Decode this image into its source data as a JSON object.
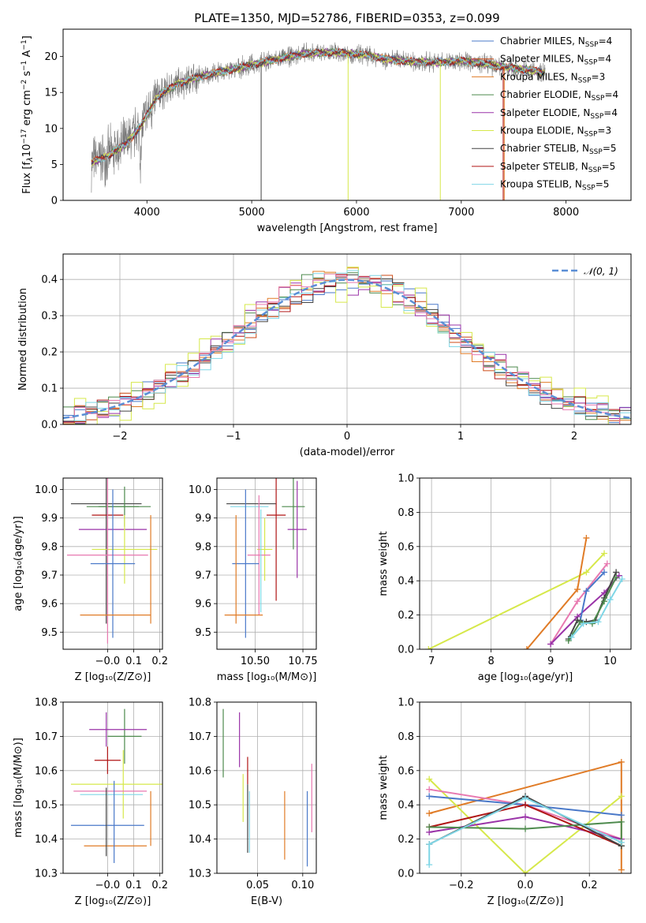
{
  "figure_title": "PLATE=1350, MJD=52786, FIBERID=0353, z=0.099",
  "colors": {
    "chabrier_miles": "#4a79c9",
    "salpeter_miles": "#cc4a15",
    "kroupa_miles": "#e07b26",
    "chabrier_elodie": "#4d8a4d",
    "salpeter_elodie": "#9a33a8",
    "kroupa_elodie": "#d6e84a",
    "chabrier_stelib": "#444444",
    "salpeter_stelib": "#b01515",
    "kroupa_stelib": "#7fd6e6",
    "pink": "#e879b0",
    "data": "#7a7a7a",
    "normal_curve": "#5b8fd6"
  },
  "chart_data": [
    {
      "id": "spectrum",
      "type": "line",
      "title": "PLATE=1350, MJD=52786, FIBERID=0353, z=0.099",
      "xlabel": "wavelength [Angstrom, rest frame]",
      "ylabel_parts": [
        "Flux [f",
        "λ",
        "10",
        "−17",
        " erg cm",
        "−2",
        " s",
        "−1",
        " A",
        "−1",
        "]"
      ],
      "xlim": [
        3200,
        8620
      ],
      "ylim": [
        0,
        23.8
      ],
      "xticks": [
        4000,
        5000,
        6000,
        7000,
        8000
      ],
      "yticks": [
        0,
        5,
        10,
        15,
        20
      ],
      "legend_position": "right",
      "legend": [
        {
          "label": "Chabrier MILES, N",
          "sub": "SSP",
          "tail": "=4",
          "color_key": "chabrier_miles"
        },
        {
          "label": "Salpeter MILES, N",
          "sub": "SSP",
          "tail": "=4",
          "color_key": "salpeter_miles"
        },
        {
          "label": "Kroupa MILES, N",
          "sub": "SSP",
          "tail": "=3",
          "color_key": "kroupa_miles"
        },
        {
          "label": "Chabrier ELODIE, N",
          "sub": "SSP",
          "tail": "=4",
          "color_key": "chabrier_elodie"
        },
        {
          "label": "Salpeter ELODIE, N",
          "sub": "SSP",
          "tail": "=4",
          "color_key": "salpeter_elodie"
        },
        {
          "label": "Kroupa ELODIE, N",
          "sub": "SSP",
          "tail": "=3",
          "color_key": "kroupa_elodie"
        },
        {
          "label": "Chabrier STELIB, N",
          "sub": "SSP",
          "tail": "=5",
          "color_key": "chabrier_stelib"
        },
        {
          "label": "Salpeter STELIB, N",
          "sub": "SSP",
          "tail": "=5",
          "color_key": "salpeter_stelib"
        },
        {
          "label": "Kroupa STELIB, N",
          "sub": "SSP",
          "tail": "=5",
          "color_key": "kroupa_stelib"
        }
      ],
      "envelope": [
        [
          3470,
          5.3
        ],
        [
          3600,
          6.0
        ],
        [
          3800,
          7.8
        ],
        [
          3950,
          10.5
        ],
        [
          4100,
          14.5
        ],
        [
          4300,
          16.3
        ],
        [
          4500,
          17.2
        ],
        [
          4750,
          18.0
        ],
        [
          5000,
          18.8
        ],
        [
          5200,
          19.5
        ],
        [
          5500,
          20.4
        ],
        [
          5800,
          20.6
        ],
        [
          6100,
          20.2
        ],
        [
          6300,
          19.6
        ],
        [
          6500,
          19.3
        ],
        [
          6800,
          19.2
        ],
        [
          7000,
          19.4
        ],
        [
          7200,
          19.0
        ],
        [
          7400,
          18.6
        ],
        [
          7700,
          18.0
        ],
        [
          7800,
          17.8
        ]
      ]
    },
    {
      "id": "residual_hist",
      "type": "bar",
      "xlabel": "(data-model)/error",
      "ylabel": "Normed distribution",
      "xlim": [
        -2.5,
        2.5
      ],
      "ylim": [
        0,
        0.47
      ],
      "xticks": [
        -2,
        -1,
        0,
        1,
        2
      ],
      "yticks": [
        0.0,
        0.1,
        0.2,
        0.3,
        0.4
      ],
      "legend_position": "top-right",
      "legend_label": "𝒩(0, 1)",
      "bin_width": 0.1
    },
    {
      "id": "age_vs_z",
      "type": "scatter",
      "xlabel": "Z [log₁₀(Z/Z⊙)]",
      "ylabel": "age  [log₁₀(age/yr)]",
      "xlim": [
        -0.17,
        0.21
      ],
      "ylim": [
        9.44,
        10.04
      ],
      "xticks": [
        -0.0,
        0.1,
        0.2
      ],
      "xtick_labels": [
        "−0.0",
        "0.1",
        "0.2"
      ],
      "yticks": [
        9.5,
        9.6,
        9.7,
        9.8,
        9.9,
        10.0
      ],
      "points": [
        {
          "x": -0.005,
          "y": 9.95,
          "xerr": 0.135,
          "yerr": 0.42,
          "color_key": "chabrier_stelib"
        },
        {
          "x": 0.02,
          "y": 9.94,
          "xerr": 0.1,
          "yerr": 0.0,
          "color_key": "chabrier_elodie"
        },
        {
          "x": 0.065,
          "y": 9.94,
          "xerr": 0.1,
          "yerr": 0.07,
          "color_key": "chabrier_elodie"
        },
        {
          "x": 0.0,
          "y": 9.91,
          "xerr": 0.06,
          "yerr": 0.0,
          "color_key": "salpeter_stelib"
        },
        {
          "x": 0.02,
          "y": 9.86,
          "xerr": 0.13,
          "yerr": 0.0,
          "color_key": "salpeter_elodie"
        },
        {
          "x": 0.065,
          "y": 9.79,
          "xerr": 0.125,
          "yerr": 0.12,
          "color_key": "kroupa_elodie"
        },
        {
          "x": 0.0,
          "y": 9.77,
          "xerr": 0.155,
          "yerr": 0.31,
          "color_key": "pink"
        },
        {
          "x": 0.02,
          "y": 9.74,
          "xerr": 0.085,
          "yerr": 0.26,
          "color_key": "chabrier_miles"
        },
        {
          "x": 0.03,
          "y": 9.56,
          "xerr": 0.135,
          "yerr": 0.0,
          "color_key": "kroupa_miles"
        },
        {
          "x": 0.165,
          "y": 9.72,
          "xerr": 0.0,
          "yerr": 0.19,
          "color_key": "kroupa_miles"
        }
      ]
    },
    {
      "id": "age_vs_mass",
      "type": "scatter",
      "xlabel": "mass [log₁₀(M/M⊙)]",
      "ylabel": "",
      "xlim": [
        10.3,
        10.82
      ],
      "ylim": [
        9.44,
        10.04
      ],
      "xticks": [
        10.5,
        10.75
      ],
      "xtick_labels": [
        "10.50",
        "10.75"
      ],
      "yticks": [
        9.5,
        9.6,
        9.7,
        9.8,
        9.9,
        10.0
      ],
      "points": [
        {
          "x": 10.48,
          "y": 9.95,
          "xerr": 0.13,
          "yerr": 0.0,
          "color_key": "chabrier_stelib"
        },
        {
          "x": 10.47,
          "y": 9.94,
          "xerr": 0.1,
          "yerr": 0.0,
          "color_key": "kroupa_stelib"
        },
        {
          "x": 10.7,
          "y": 9.94,
          "xerr": 0.06,
          "yerr": 0.15,
          "color_key": "chabrier_elodie"
        },
        {
          "x": 10.61,
          "y": 9.91,
          "xerr": 0.05,
          "yerr": 0.3,
          "color_key": "salpeter_stelib"
        },
        {
          "x": 10.72,
          "y": 9.86,
          "xerr": 0.05,
          "yerr": 0.17,
          "color_key": "salpeter_elodie"
        },
        {
          "x": 10.55,
          "y": 9.79,
          "xerr": 0.04,
          "yerr": 0.11,
          "color_key": "kroupa_elodie"
        },
        {
          "x": 10.52,
          "y": 9.77,
          "xerr": 0.06,
          "yerr": 0.21,
          "color_key": "pink"
        },
        {
          "x": 10.45,
          "y": 9.74,
          "xerr": 0.07,
          "yerr": 0.26,
          "color_key": "chabrier_miles"
        },
        {
          "x": 10.44,
          "y": 9.56,
          "xerr": 0.1,
          "yerr": 0.0,
          "color_key": "kroupa_miles"
        },
        {
          "x": 10.4,
          "y": 9.72,
          "xerr": 0.0,
          "yerr": 0.19,
          "color_key": "kroupa_miles"
        },
        {
          "x": 10.53,
          "y": 9.75,
          "xerr": 0.0,
          "yerr": 0.18,
          "color_key": "kroupa_stelib"
        }
      ]
    },
    {
      "id": "weight_vs_age",
      "type": "line",
      "xlabel": "age  [log₁₀(age/yr)]",
      "ylabel": "mass weight",
      "xlim": [
        6.8,
        10.35
      ],
      "ylim": [
        0.0,
        1.0
      ],
      "xticks": [
        7,
        8,
        9,
        10
      ],
      "yticks": [
        0.0,
        0.2,
        0.4,
        0.6,
        0.8,
        1.0
      ],
      "series": [
        {
          "color_key": "kroupa_elodie",
          "points": [
            [
              6.95,
              0.0
            ],
            [
              9.6,
              0.45
            ],
            [
              9.9,
              0.56
            ]
          ]
        },
        {
          "color_key": "kroupa_miles",
          "points": [
            [
              8.6,
              0.0
            ],
            [
              9.45,
              0.35
            ],
            [
              9.6,
              0.65
            ]
          ]
        },
        {
          "color_key": "pink",
          "points": [
            [
              9.0,
              0.03
            ],
            [
              9.45,
              0.28
            ],
            [
              9.95,
              0.5
            ]
          ]
        },
        {
          "color_key": "salpeter_elodie",
          "points": [
            [
              9.0,
              0.03
            ],
            [
              9.45,
              0.19
            ],
            [
              9.9,
              0.33
            ],
            [
              10.15,
              0.43
            ]
          ]
        },
        {
          "color_key": "chabrier_miles",
          "points": [
            [
              9.5,
              0.17
            ],
            [
              9.6,
              0.34
            ],
            [
              9.9,
              0.45
            ]
          ]
        },
        {
          "color_key": "chabrier_stelib",
          "points": [
            [
              9.3,
              0.06
            ],
            [
              9.45,
              0.17
            ],
            [
              9.6,
              0.16
            ],
            [
              9.75,
              0.17
            ],
            [
              9.9,
              0.3
            ],
            [
              10.1,
              0.45
            ]
          ]
        },
        {
          "color_key": "chabrier_elodie",
          "points": [
            [
              9.3,
              0.05
            ],
            [
              9.5,
              0.16
            ],
            [
              9.7,
              0.15
            ],
            [
              9.9,
              0.28
            ],
            [
              10.1,
              0.42
            ]
          ]
        },
        {
          "color_key": "kroupa_stelib",
          "points": [
            [
              9.35,
              0.07
            ],
            [
              9.55,
              0.15
            ],
            [
              9.8,
              0.16
            ],
            [
              10.0,
              0.29
            ],
            [
              10.2,
              0.41
            ]
          ]
        }
      ]
    },
    {
      "id": "mass_vs_z",
      "type": "scatter",
      "xlabel": "Z [log₁₀(Z/Z⊙)]",
      "ylabel": "mass [log₁₀(M/M⊙)]",
      "xlim": [
        -0.17,
        0.21
      ],
      "ylim": [
        10.3,
        10.8
      ],
      "xticks": [
        -0.0,
        0.1,
        0.2
      ],
      "xtick_labels": [
        "−0.0",
        "0.1",
        "0.2"
      ],
      "yticks": [
        10.3,
        10.4,
        10.5,
        10.6,
        10.7,
        10.8
      ],
      "points": [
        {
          "x": -0.005,
          "y": 10.72,
          "xerr": 0.0,
          "yerr": 0.05,
          "color_key": "salpeter_elodie"
        },
        {
          "x": 0.065,
          "y": 10.7,
          "xerr": 0.065,
          "yerr": 0.08,
          "color_key": "chabrier_elodie"
        },
        {
          "x": 0.04,
          "y": 10.72,
          "xerr": 0.11,
          "yerr": 0.0,
          "color_key": "salpeter_elodie"
        },
        {
          "x": 0.0,
          "y": 10.63,
          "xerr": 0.05,
          "yerr": 0.04,
          "color_key": "salpeter_stelib"
        },
        {
          "x": 0.06,
          "y": 10.56,
          "xerr": 0.2,
          "yerr": 0.1,
          "color_key": "kroupa_elodie"
        },
        {
          "x": 0.01,
          "y": 10.54,
          "xerr": 0.14,
          "yerr": 0.0,
          "color_key": "pink"
        },
        {
          "x": 0.015,
          "y": 10.53,
          "xerr": 0.12,
          "yerr": 0.0,
          "color_key": "kroupa_stelib"
        },
        {
          "x": 0.0,
          "y": 10.44,
          "xerr": 0.14,
          "yerr": 0.0,
          "color_key": "chabrier_miles"
        },
        {
          "x": 0.03,
          "y": 10.38,
          "xerr": 0.12,
          "yerr": 0.0,
          "color_key": "kroupa_miles"
        },
        {
          "x": 0.165,
          "y": 10.46,
          "xerr": 0.0,
          "yerr": 0.08,
          "color_key": "kroupa_miles"
        },
        {
          "x": -0.005,
          "y": 10.45,
          "xerr": 0.0,
          "yerr": 0.1,
          "color_key": "chabrier_stelib"
        },
        {
          "x": 0.025,
          "y": 10.45,
          "xerr": 0.0,
          "yerr": 0.12,
          "color_key": "chabrier_miles"
        }
      ]
    },
    {
      "id": "mass_vs_ebv",
      "type": "scatter",
      "xlabel": "E(B-V)",
      "ylabel": "",
      "xlim": [
        0.005,
        0.115
      ],
      "ylim": [
        10.3,
        10.8
      ],
      "xticks": [
        0.05,
        0.1
      ],
      "xtick_labels": [
        "0.05",
        "0.10"
      ],
      "yticks": [
        10.3,
        10.4,
        10.5,
        10.6,
        10.7,
        10.8
      ],
      "points": [
        {
          "x": 0.012,
          "y": 10.68,
          "xerr": 0.0,
          "yerr": 0.1,
          "color_key": "chabrier_elodie"
        },
        {
          "x": 0.03,
          "y": 10.69,
          "xerr": 0.0,
          "yerr": 0.08,
          "color_key": "salpeter_elodie"
        },
        {
          "x": 0.034,
          "y": 10.52,
          "xerr": 0.0,
          "yerr": 0.07,
          "color_key": "kroupa_elodie"
        },
        {
          "x": 0.039,
          "y": 10.6,
          "xerr": 0.0,
          "yerr": 0.04,
          "color_key": "salpeter_stelib"
        },
        {
          "x": 0.039,
          "y": 10.46,
          "xerr": 0.0,
          "yerr": 0.1,
          "color_key": "chabrier_stelib"
        },
        {
          "x": 0.041,
          "y": 10.45,
          "xerr": 0.0,
          "yerr": 0.09,
          "color_key": "kroupa_stelib"
        },
        {
          "x": 0.08,
          "y": 10.44,
          "xerr": 0.0,
          "yerr": 0.1,
          "color_key": "kroupa_miles"
        },
        {
          "x": 0.105,
          "y": 10.43,
          "xerr": 0.0,
          "yerr": 0.11,
          "color_key": "chabrier_miles"
        },
        {
          "x": 0.11,
          "y": 10.52,
          "xerr": 0.0,
          "yerr": 0.1,
          "color_key": "pink"
        }
      ]
    },
    {
      "id": "weight_vs_z",
      "type": "line",
      "xlabel": "Z [log₁₀(Z/Z⊙)]",
      "ylabel": "mass weight",
      "xlim": [
        -0.33,
        0.33
      ],
      "ylim": [
        0.0,
        1.0
      ],
      "xticks": [
        -0.2,
        0.0,
        0.2
      ],
      "xtick_labels": [
        "−0.2",
        "0.0",
        "0.2"
      ],
      "yticks": [
        0.0,
        0.2,
        0.4,
        0.6,
        0.8,
        1.0
      ],
      "series": [
        {
          "color_key": "kroupa_miles",
          "points": [
            [
              -0.3,
              0.35
            ],
            [
              0.3,
              0.65
            ],
            [
              0.3,
              0.02
            ]
          ]
        },
        {
          "color_key": "kroupa_elodie",
          "points": [
            [
              -0.3,
              0.55
            ],
            [
              0.0,
              0.0
            ],
            [
              0.3,
              0.45
            ]
          ]
        },
        {
          "color_key": "pink",
          "points": [
            [
              -0.3,
              0.49
            ],
            [
              0.0,
              0.4
            ],
            [
              0.3,
              0.2
            ]
          ]
        },
        {
          "color_key": "chabrier_miles",
          "points": [
            [
              -0.3,
              0.45
            ],
            [
              0.0,
              0.4
            ],
            [
              0.3,
              0.34
            ]
          ]
        },
        {
          "color_key": "salpeter_elodie",
          "points": [
            [
              -0.3,
              0.24
            ],
            [
              0.0,
              0.33
            ],
            [
              0.3,
              0.2
            ]
          ]
        },
        {
          "color_key": "salpeter_stelib",
          "points": [
            [
              -0.3,
              0.27
            ],
            [
              0.0,
              0.4
            ],
            [
              0.3,
              0.16
            ]
          ]
        },
        {
          "color_key": "chabrier_elodie",
          "points": [
            [
              -0.3,
              0.27
            ],
            [
              0.0,
              0.26
            ],
            [
              0.3,
              0.3
            ],
            [
              0.3,
              0.16
            ]
          ]
        },
        {
          "color_key": "chabrier_stelib",
          "points": [
            [
              -0.3,
              0.17
            ],
            [
              0.0,
              0.45
            ],
            [
              0.3,
              0.16
            ]
          ]
        },
        {
          "color_key": "kroupa_stelib",
          "points": [
            [
              -0.3,
              0.05
            ],
            [
              -0.3,
              0.17
            ],
            [
              0.0,
              0.44
            ],
            [
              0.3,
              0.18
            ]
          ]
        }
      ]
    }
  ]
}
